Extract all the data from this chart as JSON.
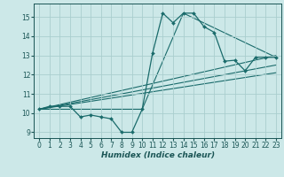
{
  "title": "",
  "xlabel": "Humidex (Indice chaleur)",
  "xlim": [
    -0.5,
    23.5
  ],
  "ylim": [
    8.7,
    15.7
  ],
  "yticks": [
    9,
    10,
    11,
    12,
    13,
    14,
    15
  ],
  "xticks": [
    0,
    1,
    2,
    3,
    4,
    5,
    6,
    7,
    8,
    9,
    10,
    11,
    12,
    13,
    14,
    15,
    16,
    17,
    18,
    19,
    20,
    21,
    22,
    23
  ],
  "bg_color": "#cce8e8",
  "grid_color": "#aacece",
  "line_color": "#1a6b6b",
  "series_main": {
    "x": [
      0,
      1,
      2,
      3,
      4,
      5,
      6,
      7,
      8,
      9,
      10,
      11,
      12,
      13,
      14,
      15,
      16,
      17,
      18,
      19,
      20,
      21,
      22,
      23
    ],
    "y": [
      10.2,
      10.35,
      10.35,
      10.35,
      9.8,
      9.9,
      9.8,
      9.7,
      9.0,
      9.0,
      10.2,
      13.1,
      15.2,
      14.7,
      15.2,
      15.2,
      14.5,
      14.2,
      12.7,
      12.75,
      12.2,
      12.9,
      12.9,
      12.9
    ]
  },
  "series_lines": [
    {
      "x": [
        0,
        10,
        14,
        23
      ],
      "y": [
        10.2,
        10.2,
        15.2,
        12.9
      ]
    },
    {
      "x": [
        0,
        23
      ],
      "y": [
        10.2,
        13.0
      ]
    },
    {
      "x": [
        0,
        23
      ],
      "y": [
        10.2,
        12.5
      ]
    },
    {
      "x": [
        0,
        23
      ],
      "y": [
        10.2,
        12.1
      ]
    }
  ]
}
